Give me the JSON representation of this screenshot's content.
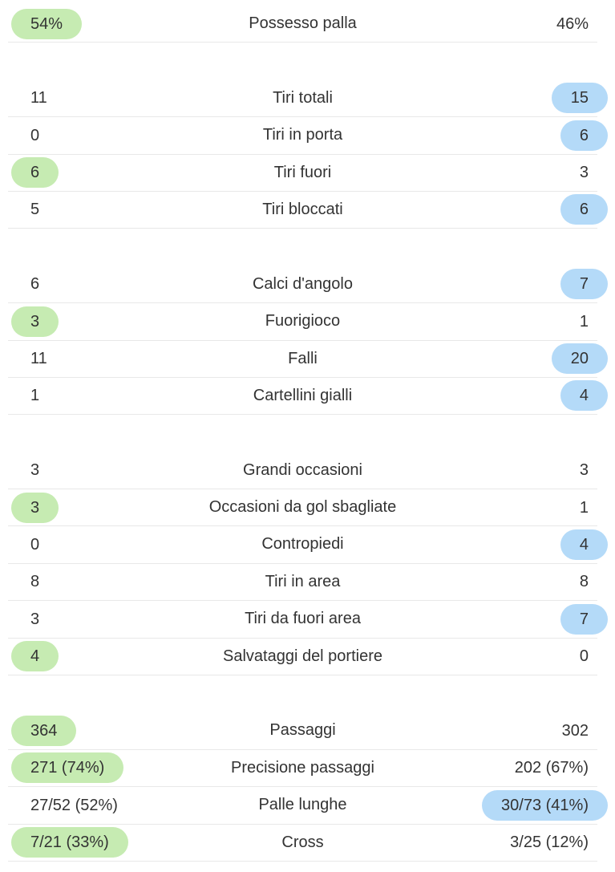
{
  "groups": [
    [
      {
        "home": "54%",
        "label": "Possesso palla",
        "away": "46%",
        "highlight": "home"
      }
    ],
    [
      {
        "home": 11,
        "label": "Tiri totali",
        "away": 15,
        "highlight": "away"
      },
      {
        "home": 0,
        "label": "Tiri in porta",
        "away": 6,
        "highlight": "away"
      },
      {
        "home": 6,
        "label": "Tiri fuori",
        "away": 3,
        "highlight": "home"
      },
      {
        "home": 5,
        "label": "Tiri bloccati",
        "away": 6,
        "highlight": "away"
      }
    ],
    [
      {
        "home": 6,
        "label": "Calci d'angolo",
        "away": 7,
        "highlight": "away"
      },
      {
        "home": 3,
        "label": "Fuorigioco",
        "away": 1,
        "highlight": "home"
      },
      {
        "home": 11,
        "label": "Falli",
        "away": 20,
        "highlight": "away"
      },
      {
        "home": 1,
        "label": "Cartellini gialli",
        "away": 4,
        "highlight": "away"
      }
    ],
    [
      {
        "home": 3,
        "label": "Grandi occasioni",
        "away": 3
      },
      {
        "home": 3,
        "label": "Occasioni da gol sbagliate",
        "away": 1,
        "highlight": "home"
      },
      {
        "home": 0,
        "label": "Contropiedi",
        "away": 4,
        "highlight": "away"
      },
      {
        "home": 8,
        "label": "Tiri in area",
        "away": 8
      },
      {
        "home": 3,
        "label": "Tiri da fuori area",
        "away": 7,
        "highlight": "away"
      },
      {
        "home": 4,
        "label": "Salvataggi del portiere",
        "away": 0,
        "highlight": "home"
      }
    ],
    [
      {
        "home": 364,
        "label": "Passaggi",
        "away": 302,
        "highlight": "home"
      },
      {
        "home": "271 (74%)",
        "label": "Precisione passaggi",
        "away": "202 (67%)",
        "highlight": "home"
      },
      {
        "home": "27/52 (52%)",
        "label": "Palle lunghe",
        "away": "30/73 (41%)",
        "highlight": "away"
      },
      {
        "home": "7/21 (33%)",
        "label": "Cross",
        "away": "3/25 (12%)",
        "highlight": "home"
      }
    ]
  ]
}
